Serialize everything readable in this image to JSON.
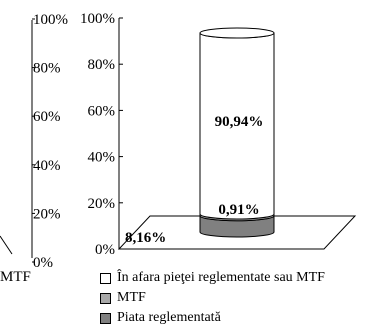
{
  "chart_data": {
    "type": "bar",
    "subtype": "stacked-3d-cylinder",
    "categories": [
      ""
    ],
    "series": [
      {
        "name": "Piata reglementată",
        "values": [
          8.16
        ],
        "label": "8,16%",
        "color": "#808080"
      },
      {
        "name": "MTF",
        "values": [
          0.91
        ],
        "label": "0,91%",
        "color": "#a8a8a8"
      },
      {
        "name": "În afara pieţei reglementate sau MTF",
        "values": [
          90.94
        ],
        "label": "90,94%",
        "color": "#ffffff"
      }
    ],
    "yticks": [
      "0%",
      "20%",
      "40%",
      "60%",
      "80%",
      "100%"
    ],
    "ylim": [
      0,
      100
    ],
    "legend_position": "bottom",
    "left_partial": {
      "yticks": [
        "0%",
        "20%",
        "40%",
        "60%",
        "80%",
        "100%"
      ],
      "xlabel_fragment": "MTF"
    }
  }
}
